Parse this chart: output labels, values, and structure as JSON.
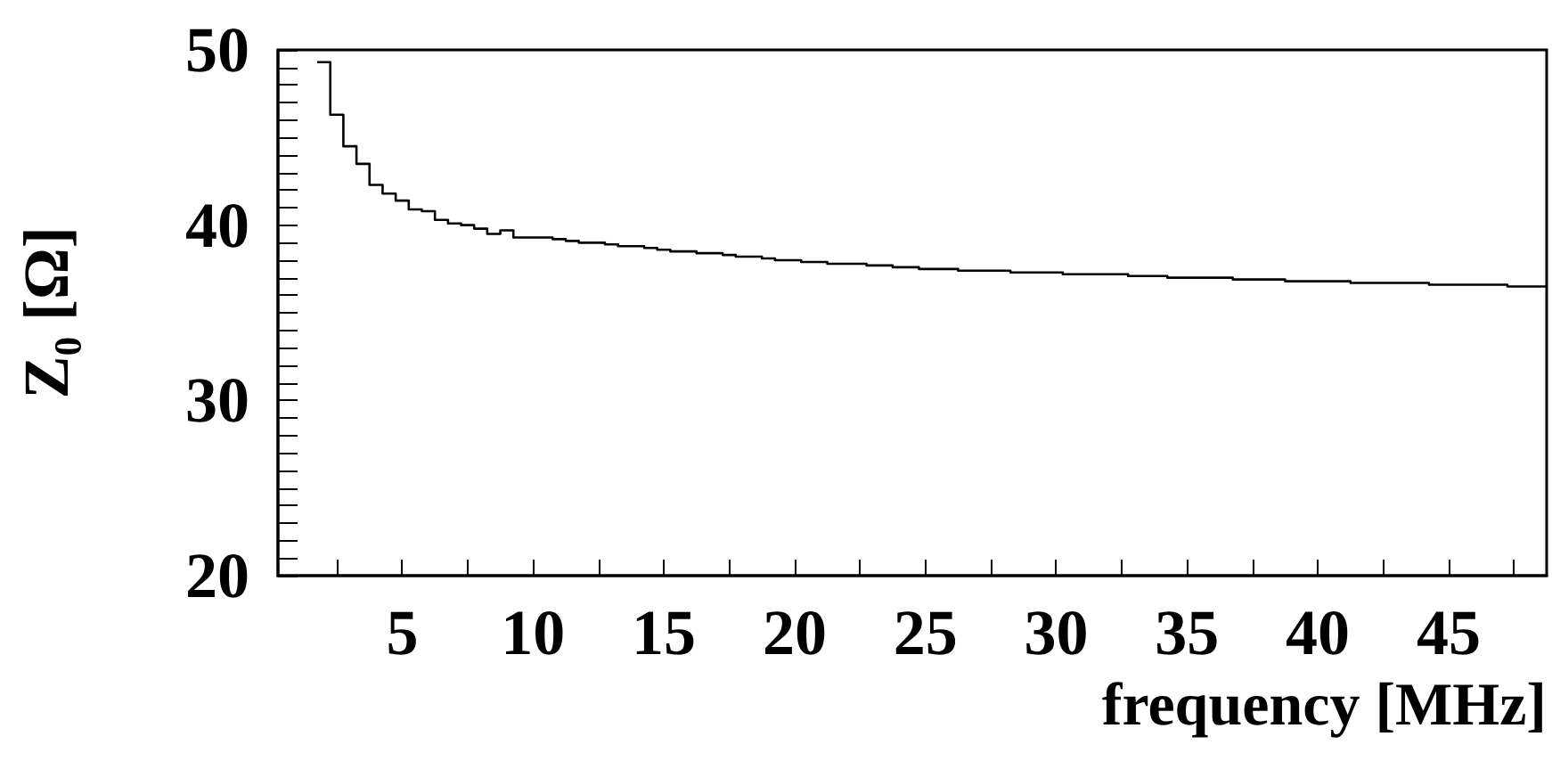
{
  "chart_data": {
    "type": "histogram",
    "xlabel": "frequency [MHz]",
    "ylabel": "Z₀ [Ω]",
    "bins": [
      1.75,
      2.25,
      2.75,
      3.25,
      3.75,
      4.25,
      4.75,
      5.25,
      5.75,
      6.25,
      6.75,
      7.25,
      7.75,
      8.25,
      8.75,
      9.25,
      9.75,
      10.25,
      10.75,
      11.25,
      11.75,
      12.25,
      12.75,
      13.25,
      13.75,
      14.25,
      14.75,
      15.25,
      15.75,
      16.25,
      16.75,
      17.25,
      17.75,
      18.25,
      18.75,
      19.25,
      19.75,
      20.25,
      20.75,
      21.25,
      21.75,
      22.25,
      22.75,
      23.25,
      23.75,
      24.25,
      24.75,
      25.25,
      25.75,
      26.25,
      26.75,
      27.25,
      27.75,
      28.25,
      28.75,
      29.25,
      29.75,
      30.25,
      30.75,
      31.25,
      31.75,
      32.25,
      32.75,
      33.25,
      33.75,
      34.25,
      34.75,
      35.25,
      35.75,
      36.25,
      36.75,
      37.25,
      37.75,
      38.25,
      38.75,
      39.25,
      39.75,
      40.25,
      40.75,
      41.25,
      41.75,
      42.25,
      42.75,
      43.25,
      43.75,
      44.25,
      44.75,
      45.25,
      45.75,
      46.25,
      46.75,
      47.25,
      47.75,
      48.25,
      48.75
    ],
    "values": [
      49.3,
      46.3,
      44.5,
      43.5,
      42.3,
      41.8,
      41.4,
      40.9,
      40.8,
      40.3,
      40.1,
      40.0,
      39.8,
      39.5,
      39.7,
      39.3,
      39.3,
      39.3,
      39.2,
      39.1,
      39.0,
      39.0,
      38.9,
      38.8,
      38.8,
      38.7,
      38.6,
      38.5,
      38.5,
      38.4,
      38.4,
      38.3,
      38.2,
      38.2,
      38.1,
      38.0,
      38.0,
      37.9,
      37.9,
      37.8,
      37.8,
      37.8,
      37.7,
      37.7,
      37.6,
      37.6,
      37.5,
      37.5,
      37.5,
      37.4,
      37.4,
      37.4,
      37.4,
      37.3,
      37.3,
      37.3,
      37.3,
      37.2,
      37.2,
      37.2,
      37.2,
      37.2,
      37.1,
      37.1,
      37.1,
      37.0,
      37.0,
      37.0,
      37.0,
      37.0,
      36.9,
      36.9,
      36.9,
      36.9,
      36.8,
      36.8,
      36.8,
      36.8,
      36.8,
      36.7,
      36.7,
      36.7,
      36.7,
      36.7,
      36.7,
      36.6,
      36.6,
      36.6,
      36.6,
      36.6,
      36.6,
      36.5,
      36.5,
      36.5
    ],
    "color": "#000000",
    "xlim": [
      0.25,
      48.75
    ],
    "xticks": [
      {
        "value": 2.5,
        "label": null
      },
      5,
      {
        "value": 7.5,
        "label": null
      },
      10,
      {
        "value": 12.5,
        "label": null
      },
      15,
      {
        "value": 17.5,
        "label": null
      },
      20,
      {
        "value": 22.5,
        "label": null
      },
      25,
      {
        "value": 27.5,
        "label": null
      },
      30,
      {
        "value": 32.5,
        "label": null
      },
      35,
      {
        "value": 37.5,
        "label": null
      },
      40,
      {
        "value": 42.5,
        "label": null
      },
      45,
      {
        "value": 47.5,
        "label": null
      }
    ],
    "ylim": [
      20,
      50
    ],
    "yticks": [
      20,
      {
        "value": 21,
        "label": null
      },
      {
        "value": 22,
        "label": null
      },
      {
        "value": 23,
        "label": null
      },
      {
        "value": 24,
        "label": null
      },
      {
        "value": 25,
        "label": null
      },
      {
        "value": 26,
        "label": null
      },
      {
        "value": 27,
        "label": null
      },
      {
        "value": 28,
        "label": null
      },
      {
        "value": 29,
        "label": null
      },
      30,
      {
        "value": 31,
        "label": null
      },
      {
        "value": 32,
        "label": null
      },
      {
        "value": 33,
        "label": null
      },
      {
        "value": 34,
        "label": null
      },
      {
        "value": 35,
        "label": null
      },
      {
        "value": 36,
        "label": null
      },
      {
        "value": 37,
        "label": null
      },
      {
        "value": 38,
        "label": null
      },
      {
        "value": 39,
        "label": null
      },
      40,
      {
        "value": 41,
        "label": null
      },
      {
        "value": 42,
        "label": null
      },
      {
        "value": 43,
        "label": null
      },
      {
        "value": 44,
        "label": null
      },
      {
        "value": 45,
        "label": null
      },
      {
        "value": 46,
        "label": null
      },
      {
        "value": 47,
        "label": null
      },
      {
        "value": 48,
        "label": null
      },
      {
        "value": 49,
        "label": null
      },
      50
    ],
    "grid": false
  }
}
